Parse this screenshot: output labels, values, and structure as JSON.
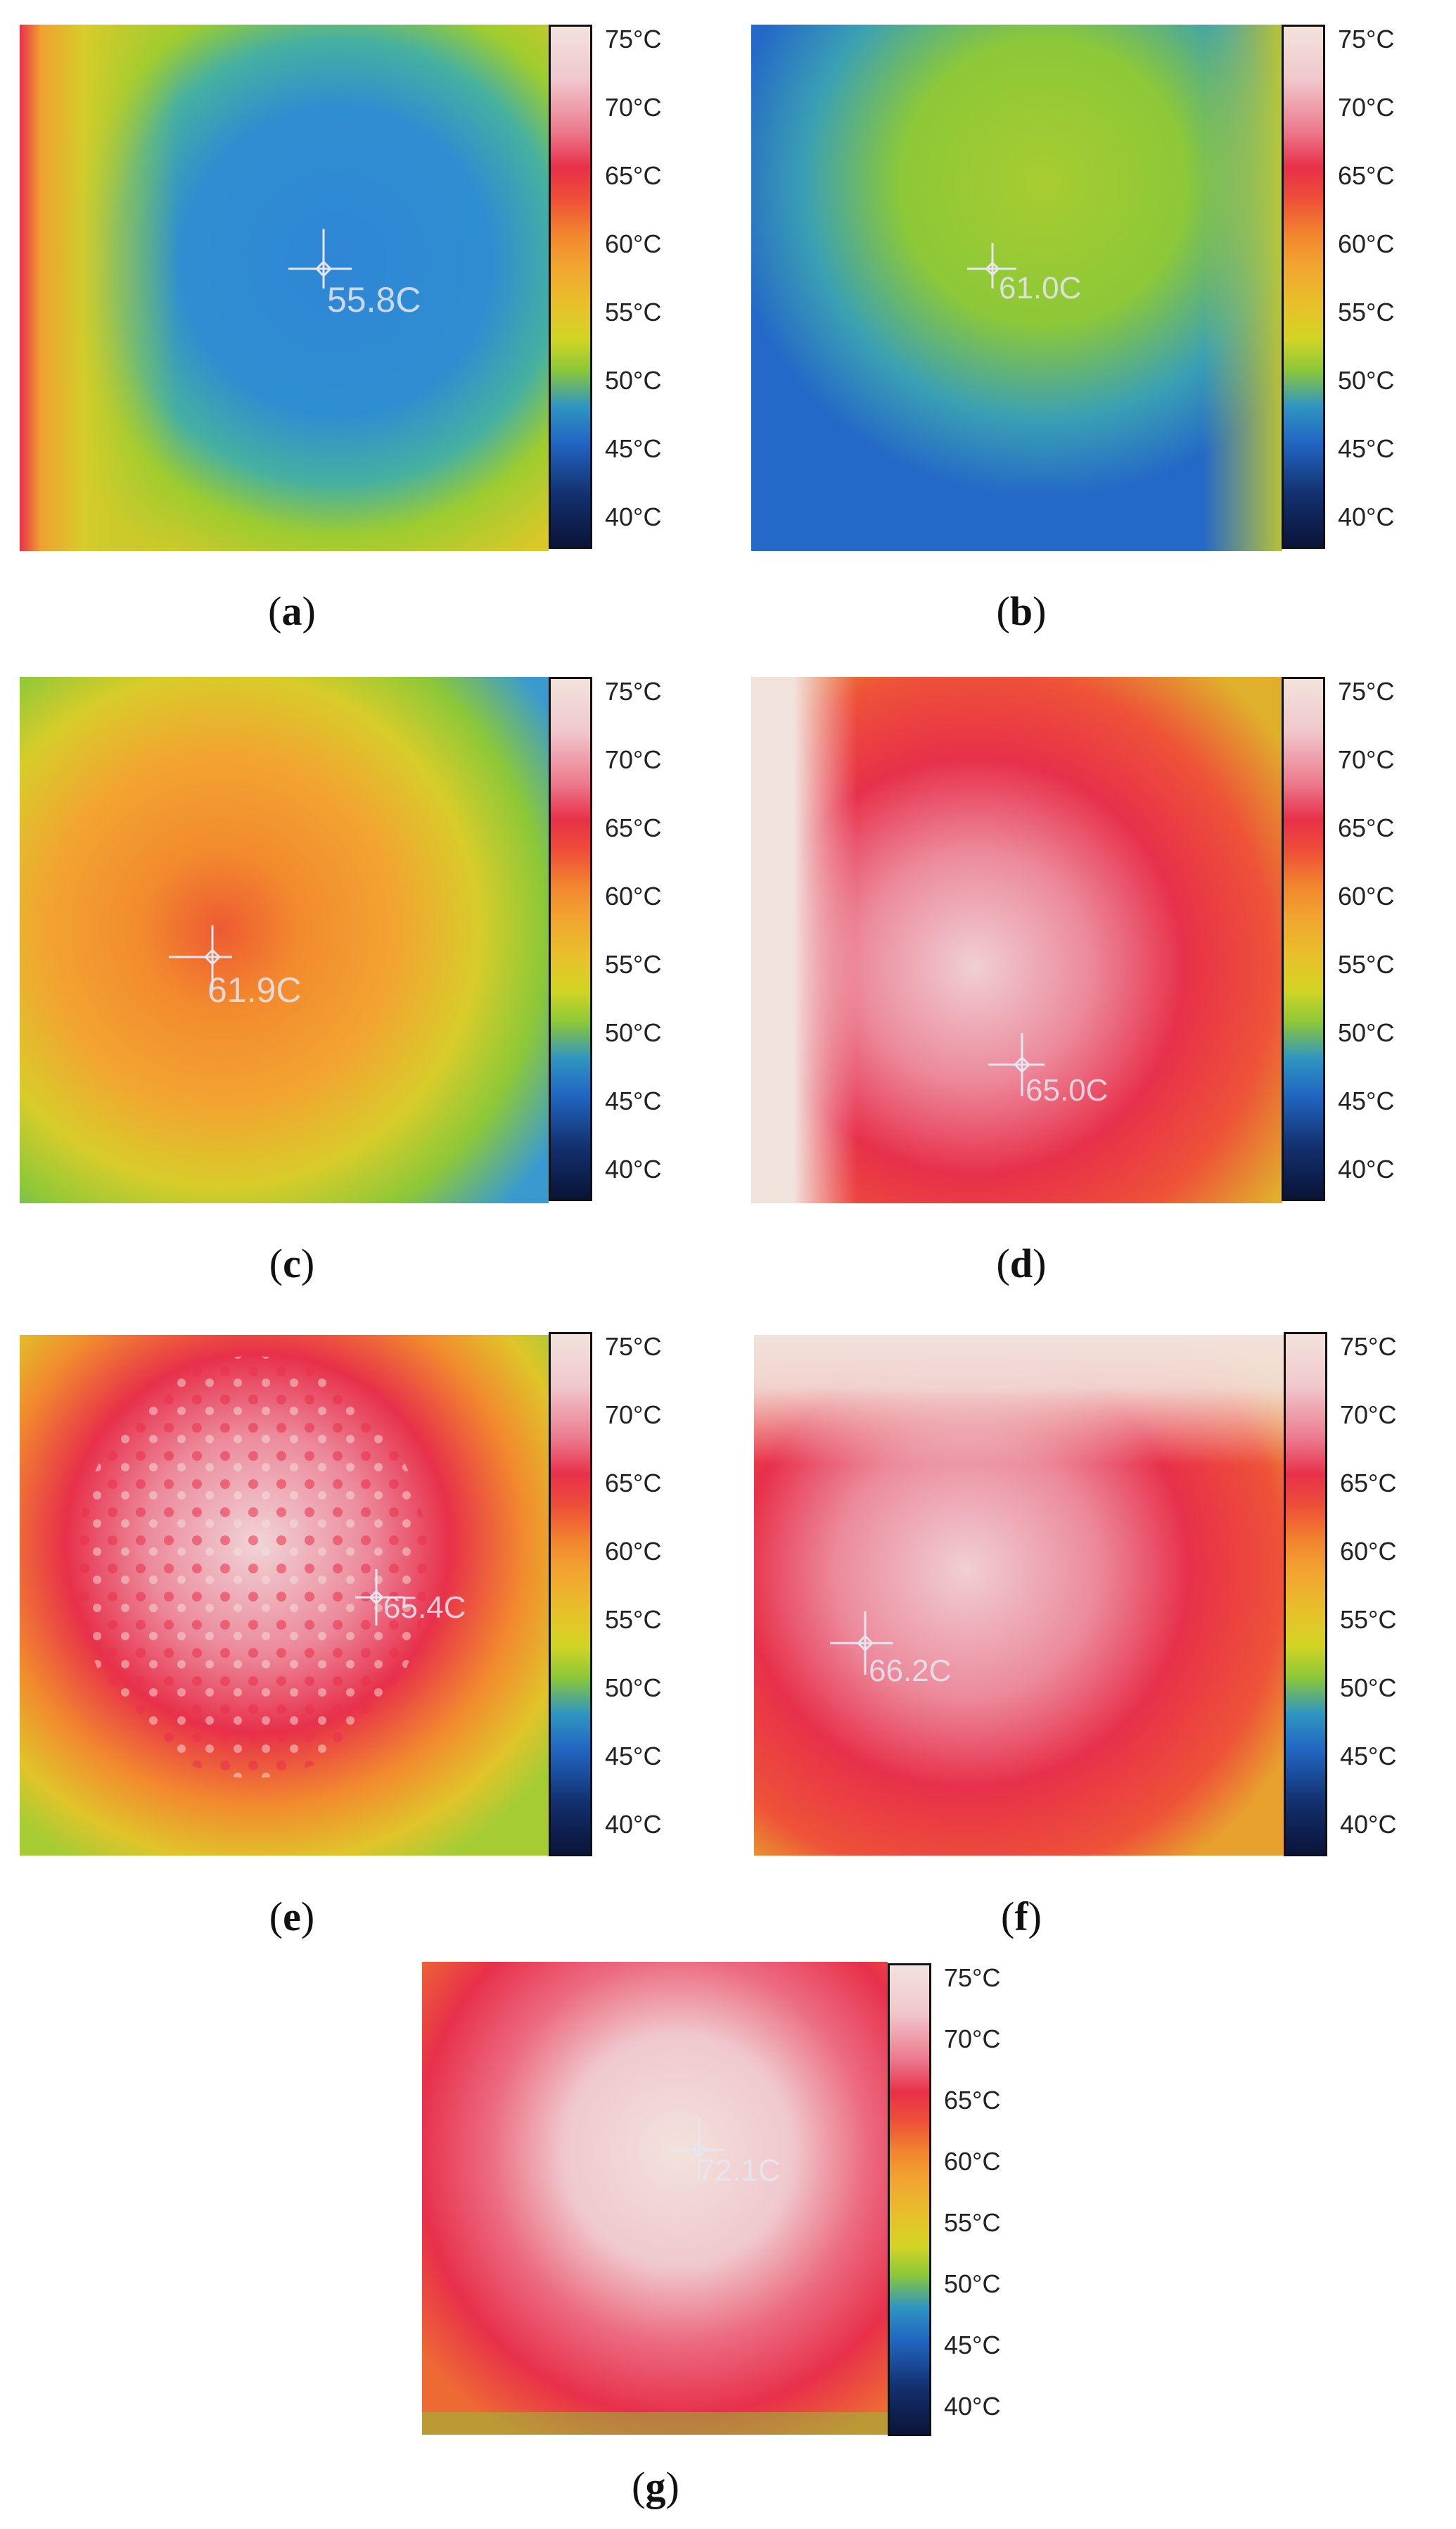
{
  "scale_ticks": [
    "75°C",
    "70°C",
    "65°C",
    "60°C",
    "55°C",
    "50°C",
    "45°C",
    "40°C"
  ],
  "panels": [
    {
      "label": "a",
      "reading": "55.8C"
    },
    {
      "label": "b",
      "reading": "61.0C"
    },
    {
      "label": "c",
      "reading": "61.9C"
    },
    {
      "label": "d",
      "reading": "65.0C"
    },
    {
      "label": "e",
      "reading": "65.4C"
    },
    {
      "label": "f",
      "reading": "66.2C"
    },
    {
      "label": "g",
      "reading": "72.1C"
    }
  ],
  "colors": {
    "hot": "#f2e2dc",
    "red": "#e8304a",
    "orange": "#f2862e",
    "yellow": "#d2d424",
    "green": "#8cc838",
    "blue": "#2f7fd0",
    "dark": "#0a1438"
  }
}
